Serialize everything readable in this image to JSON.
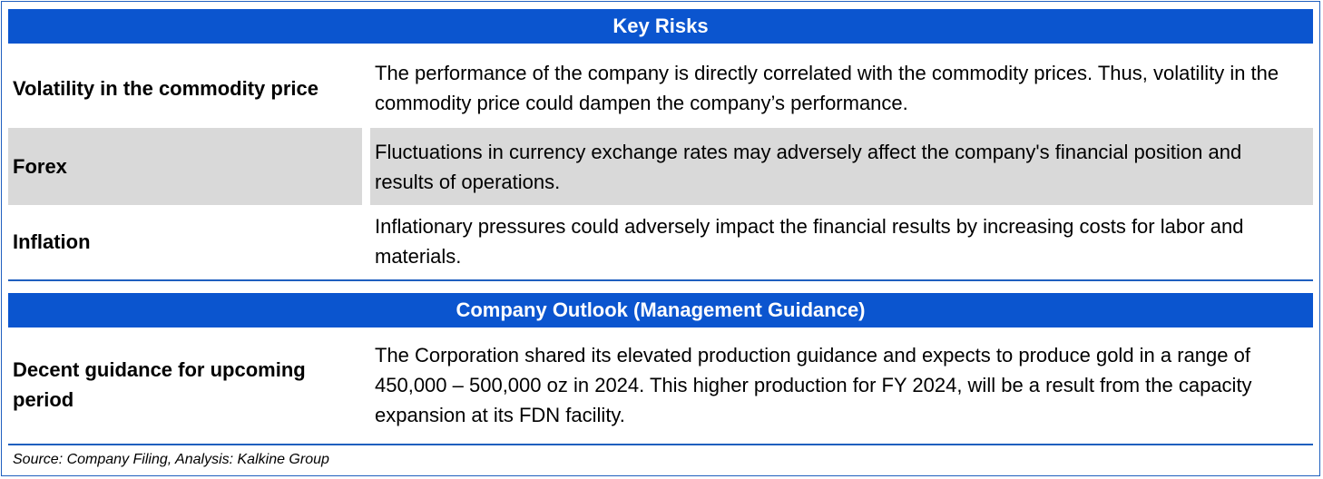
{
  "key_risks": {
    "header": "Key Risks",
    "rows": [
      {
        "label": "Volatility in the commodity price",
        "description": "The performance of the company is directly correlated with the commodity prices. Thus, volatility in the commodity price could dampen the company’s performance."
      },
      {
        "label": "Forex",
        "description": "Fluctuations in currency exchange rates may adversely affect the company's financial position and results of operations."
      },
      {
        "label": "Inflation",
        "description": "Inflationary pressures could adversely impact the financial results by increasing costs for labor and materials."
      }
    ]
  },
  "outlook": {
    "header": "Company Outlook (Management Guidance)",
    "rows": [
      {
        "label": "Decent guidance for upcoming period",
        "description": "The Corporation shared its elevated production guidance and expects to produce gold in a range of 450,000 – 500,000 oz in 2024. This higher production for FY 2024, will be a result from the capacity expansion at its FDN facility."
      }
    ]
  },
  "source": "Source: Company Filing, Analysis: Kalkine Group",
  "colors": {
    "header_bg": "#0b55cf",
    "header_text": "#ffffff",
    "shaded_row": "#d9d9d9",
    "rule": "#1f5fbf"
  }
}
